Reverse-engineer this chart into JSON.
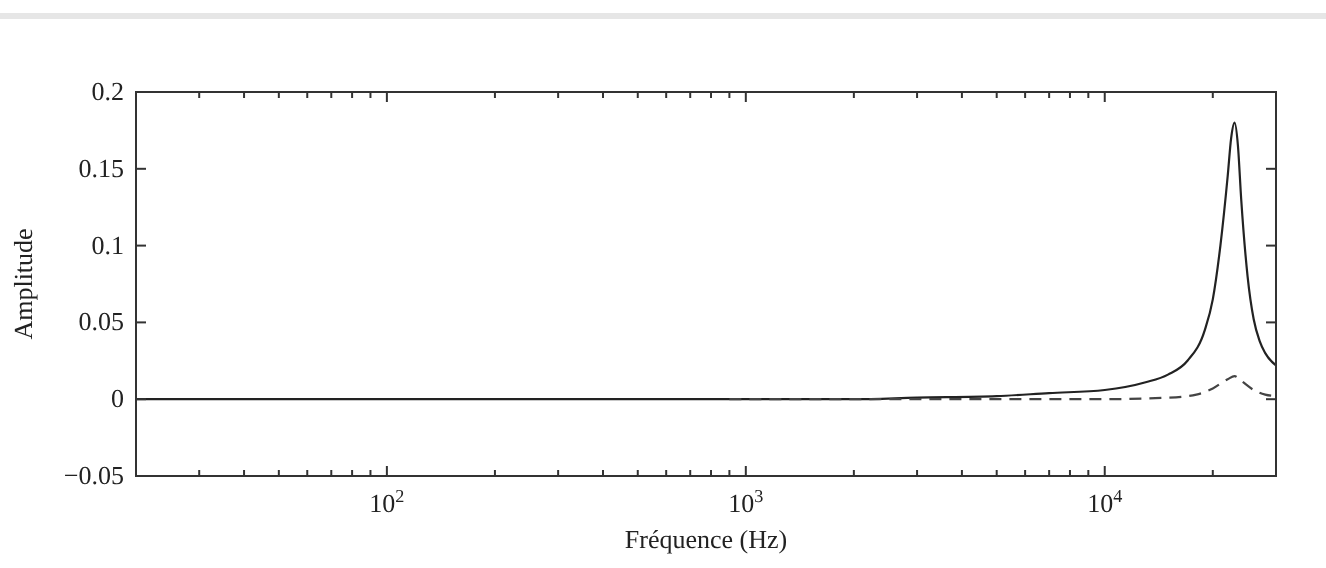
{
  "chart_data": {
    "type": "line",
    "xlabel": "Fréquence (Hz)",
    "ylabel": "Amplitude",
    "log": "x",
    "xlim": [
      20,
      30000
    ],
    "ylim": [
      -0.05,
      0.2
    ],
    "xticks": [
      {
        "value": 20,
        "label": null
      },
      {
        "value": 30,
        "label": null
      },
      {
        "value": 40,
        "label": null
      },
      {
        "value": 50,
        "label": null
      },
      {
        "value": 60,
        "label": null
      },
      {
        "value": 70,
        "label": null
      },
      {
        "value": 80,
        "label": null
      },
      {
        "value": 90,
        "label": null
      },
      {
        "value": 100,
        "label": "10$^{2}$"
      },
      {
        "value": 200,
        "label": null
      },
      {
        "value": 300,
        "label": null
      },
      {
        "value": 400,
        "label": null
      },
      {
        "value": 500,
        "label": null
      },
      {
        "value": 600,
        "label": null
      },
      {
        "value": 700,
        "label": null
      },
      {
        "value": 800,
        "label": null
      },
      {
        "value": 900,
        "label": null
      },
      {
        "value": 1000,
        "label": "10$^{3}$"
      },
      {
        "value": 2000,
        "label": null
      },
      {
        "value": 3000,
        "label": null
      },
      {
        "value": 4000,
        "label": null
      },
      {
        "value": 5000,
        "label": null
      },
      {
        "value": 6000,
        "label": null
      },
      {
        "value": 7000,
        "label": null
      },
      {
        "value": 8000,
        "label": null
      },
      {
        "value": 9000,
        "label": null
      },
      {
        "value": 10000,
        "label": "10$^{4}$"
      },
      {
        "value": 20000,
        "label": null
      }
    ],
    "yticks": [
      {
        "value": -0.05,
        "label": "−0.05"
      },
      0,
      0.05,
      0.1,
      0.15,
      0.2
    ],
    "grid": false,
    "series": [
      {
        "color": "#222222",
        "line_style": "solid",
        "x": [
          20,
          500,
          1000,
          2000,
          3000,
          5000,
          7000,
          10000,
          13000,
          15000,
          17000,
          19000,
          20000,
          21000,
          22000,
          22500,
          23000,
          23500,
          24000,
          25000,
          26000,
          27000,
          28000,
          30000
        ],
        "values": [
          0,
          0,
          0,
          0,
          0.001,
          0.002,
          0.004,
          0.006,
          0.011,
          0.016,
          0.025,
          0.045,
          0.065,
          0.1,
          0.145,
          0.17,
          0.18,
          0.165,
          0.13,
          0.08,
          0.052,
          0.038,
          0.03,
          0.022
        ]
      },
      {
        "color": "#444444",
        "line_style": "dashed",
        "x": [
          900,
          3000,
          6000,
          10000,
          15000,
          18000,
          20000,
          22000,
          23000,
          24000,
          26000,
          28000,
          30000
        ],
        "values": [
          0,
          0,
          0,
          0,
          0.001,
          0.003,
          0.007,
          0.013,
          0.015,
          0.012,
          0.006,
          0.003,
          0.002
        ]
      }
    ]
  }
}
